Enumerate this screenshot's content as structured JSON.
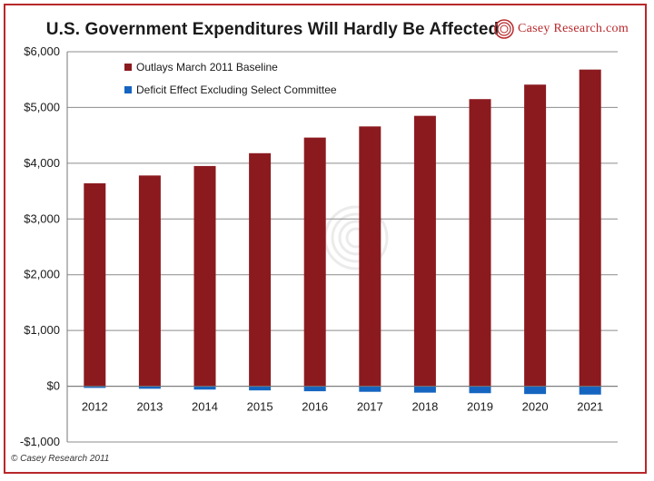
{
  "title": "U.S. Government Expenditures Will Hardly Be Affected",
  "logo_text": "Casey Research.com",
  "copyright": "© Casey Research 2011",
  "colors": {
    "outlays": "#8b1a1f",
    "deficit": "#1565c0",
    "frame": "#b8282b",
    "grid": "#8c8c8c",
    "logo": "#b8282b"
  },
  "chart_data": {
    "type": "bar",
    "title": "U.S. Government Expenditures Will Hardly Be Affected",
    "categories": [
      "2012",
      "2013",
      "2014",
      "2015",
      "2016",
      "2017",
      "2018",
      "2019",
      "2020",
      "2021"
    ],
    "series": [
      {
        "name": "Outlays March 2011 Baseline",
        "values": [
          3640,
          3780,
          3950,
          4180,
          4460,
          4660,
          4850,
          5150,
          5410,
          5680
        ]
      },
      {
        "name": "Deficit Effect Excluding Select Committee",
        "values": [
          -30,
          -45,
          -60,
          -75,
          -90,
          -100,
          -115,
          -125,
          -140,
          -150
        ]
      }
    ],
    "ylim": [
      -1000,
      6000
    ],
    "yticks": [
      -1000,
      0,
      1000,
      2000,
      3000,
      4000,
      5000,
      6000
    ],
    "ytick_labels": [
      "-$1,000",
      "$0",
      "$1,000",
      "$2,000",
      "$3,000",
      "$4,000",
      "$5,000",
      "$6,000"
    ],
    "grid": true,
    "legend_position": "top-left"
  }
}
